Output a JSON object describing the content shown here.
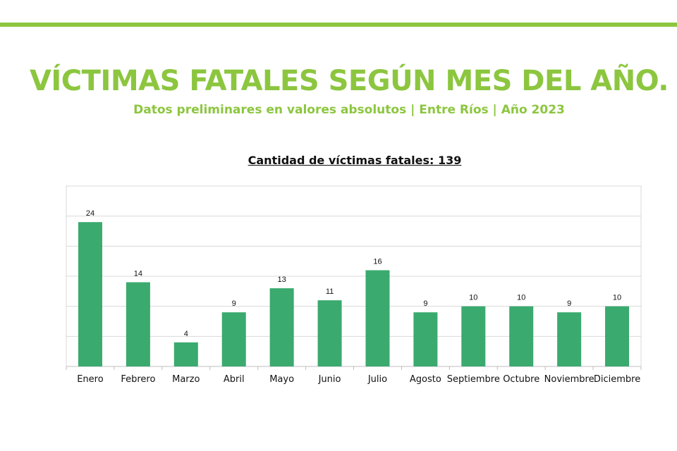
{
  "header": {
    "title": "VÍCTIMAS FATALES SEGÚN MES DEL AÑO.",
    "subtitle": "Datos preliminares en valores absolutos | Entre Ríos | Año 2023"
  },
  "colors": {
    "accent": "#8cc63f",
    "bar": "#3aaa6e",
    "grid": "#d9d9d9",
    "text": "#111111"
  },
  "chart_data": {
    "type": "bar",
    "title": "Cantidad de víctimas fatales: 139",
    "xlabel": "",
    "ylabel": "",
    "categories": [
      "Enero",
      "Febrero",
      "Marzo",
      "Abril",
      "Mayo",
      "Junio",
      "Julio",
      "Agosto",
      "Septiembre",
      "Octubre",
      "Noviembre",
      "Diciembre"
    ],
    "values": [
      24,
      14,
      4,
      9,
      13,
      11,
      16,
      9,
      10,
      10,
      9,
      10
    ],
    "ylim": [
      0,
      30
    ],
    "grid": true,
    "data_labels": true,
    "legend": "none"
  }
}
